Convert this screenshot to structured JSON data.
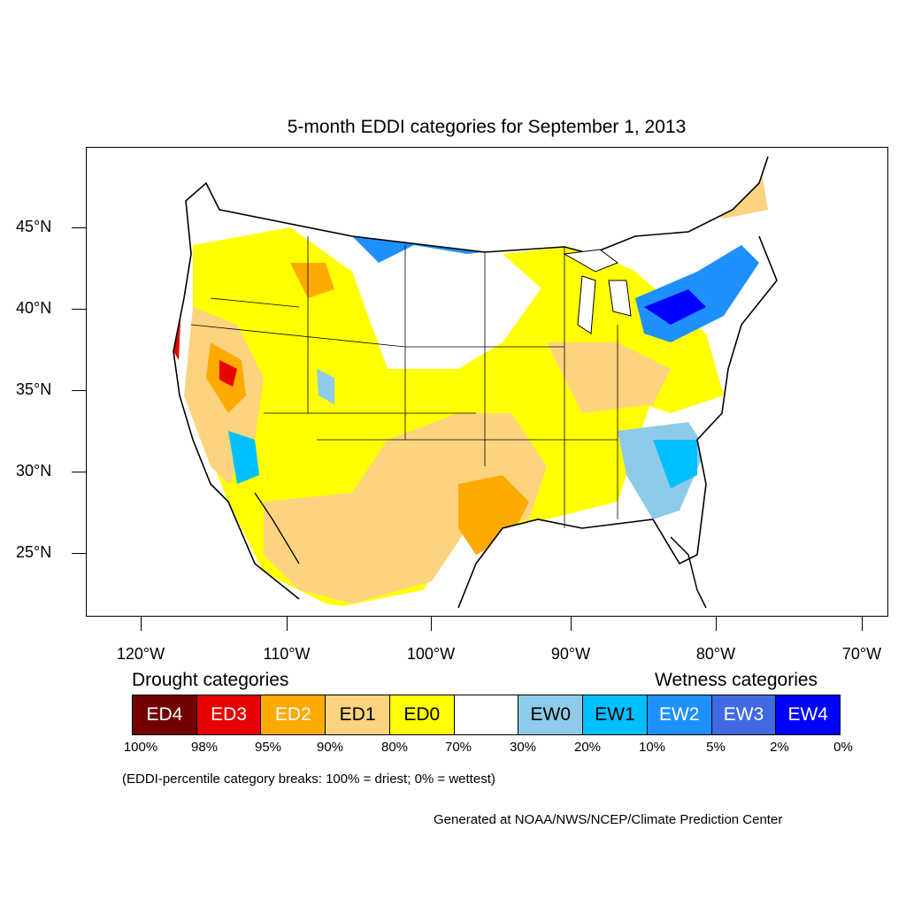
{
  "title": "5-month EDDI categories for September 1, 2013",
  "map": {
    "lat_labels": [
      "45°N",
      "40°N",
      "35°N",
      "30°N",
      "25°N"
    ],
    "lon_labels": [
      "120°W",
      "110°W",
      "100°W",
      "90°W",
      "80°W",
      "70°W"
    ]
  },
  "legend": {
    "drought_heading": "Drought categories",
    "wetness_heading": "Wetness categories",
    "categories": [
      {
        "label": "ED4",
        "color": "#730000",
        "text_color": "#ffffff"
      },
      {
        "label": "ED3",
        "color": "#e60000",
        "text_color": "#ffffff"
      },
      {
        "label": "ED2",
        "color": "#ffaa00",
        "text_color": "#ffffff"
      },
      {
        "label": "ED1",
        "color": "#fcd37f",
        "text_color": "#000000"
      },
      {
        "label": "ED0",
        "color": "#ffff00",
        "text_color": "#000000"
      },
      {
        "label": "",
        "color": "#ffffff",
        "text_color": "#000000"
      },
      {
        "label": "EW0",
        "color": "#8ecbe8",
        "text_color": "#000000"
      },
      {
        "label": "EW1",
        "color": "#00bfff",
        "text_color": "#000000"
      },
      {
        "label": "EW2",
        "color": "#1e90ff",
        "text_color": "#ffffff"
      },
      {
        "label": "EW3",
        "color": "#4169e1",
        "text_color": "#ffffff"
      },
      {
        "label": "EW4",
        "color": "#0000ff",
        "text_color": "#ffffff"
      }
    ],
    "breaks": [
      "100%",
      "98%",
      "95%",
      "90%",
      "80%",
      "70%",
      "30%",
      "20%",
      "10%",
      "5%",
      "2%",
      "0%"
    ]
  },
  "note": "(EDDI-percentile category breaks: 100% = driest; 0% = wettest)",
  "credit": "Generated at NOAA/NWS/NCEP/Climate Prediction Center"
}
